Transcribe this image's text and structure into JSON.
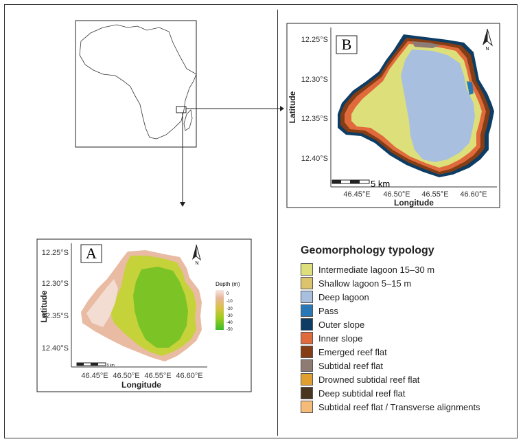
{
  "panel_b": {
    "letter": "B",
    "y_ticks": [
      "12.25°S",
      "12.30°S",
      "12.35°S",
      "12.40°S"
    ],
    "x_ticks": [
      "46.45°E",
      "46.50°E",
      "46.55°E",
      "46.60°E"
    ],
    "ylabel": "Latitude",
    "xlabel": "Longitude",
    "scale_label": "5 km"
  },
  "panel_a": {
    "letter": "A",
    "y_ticks": [
      "12.25°S",
      "12.30°S",
      "12.35°S",
      "12.40°S"
    ],
    "x_ticks": [
      "46.45°E",
      "46.50°E",
      "46.55°E",
      "46.60°E"
    ],
    "ylabel": "Latitude",
    "xlabel": "Longitude",
    "scale_label": "5 km",
    "depth_title": "Depth (m)",
    "depth_ticks": [
      "0",
      "-10",
      "-20",
      "-30",
      "-40",
      "-50"
    ]
  },
  "north_label": "N",
  "legend": {
    "title": "Geomorphology typology",
    "items": [
      {
        "label": "Intermediate lagoon 15–30 m",
        "color": "#dde07a"
      },
      {
        "label": "Shallow lagoon 5–15 m",
        "color": "#dcc36e"
      },
      {
        "label": "Deep lagoon",
        "color": "#a8bfe0"
      },
      {
        "label": "Pass",
        "color": "#2878b8"
      },
      {
        "label": "Outer slope",
        "color": "#0d3d64"
      },
      {
        "label": "Inner slope",
        "color": "#e06a3c"
      },
      {
        "label": "Emerged reef flat",
        "color": "#843d14"
      },
      {
        "label": "Subtidal reef flat",
        "color": "#8e7b74"
      },
      {
        "label": "Drowned subtidal reef flat",
        "color": "#e0a030"
      },
      {
        "label": "Deep subtidal reef flat",
        "color": "#4a3520"
      },
      {
        "label": "Subtidal reef flat / Transverse alignments",
        "color": "#f5bb78"
      }
    ]
  }
}
